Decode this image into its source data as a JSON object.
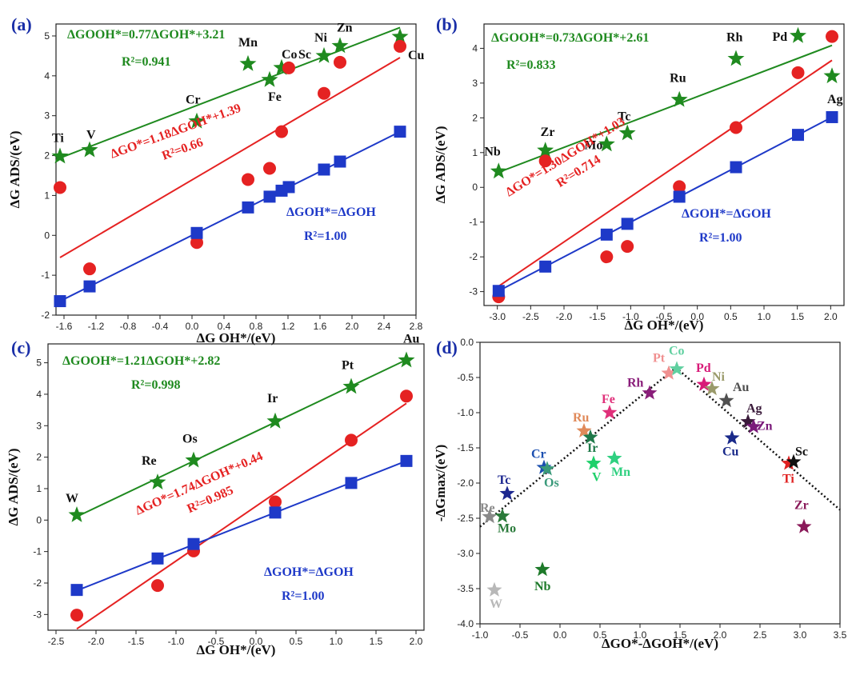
{
  "colors": {
    "ooh": "#1f8a1f",
    "o": "#e52222",
    "oh": "#1e39c8",
    "axis": "#222222",
    "panel_label": "#1a2fa8"
  },
  "chart_data": [
    {
      "type": "scatter",
      "panel": "(a)",
      "xlabel": "ΔG OH*/(eV)",
      "ylabel": "ΔG ADS/(eV)",
      "xlim": [
        -1.7,
        2.8
      ],
      "ylim": [
        -2.0,
        5.3
      ],
      "xticks": [
        "-1.6",
        "-1.2",
        "-0.8",
        "-0.4",
        "0.0",
        "0.4",
        "0.8",
        "1.2",
        "1.6",
        "2.0",
        "2.4",
        "2.8"
      ],
      "yticks": [
        "-2",
        "-1",
        "0",
        "1",
        "2",
        "3",
        "4",
        "5"
      ],
      "series": [
        {
          "name": "OOH*",
          "marker": "star",
          "color": "#1f8a1f",
          "x": [
            -1.65,
            -1.28,
            0.06,
            0.7,
            0.97,
            1.12,
            1.65,
            1.85,
            2.6
          ],
          "y": [
            1.98,
            2.14,
            2.86,
            4.3,
            3.9,
            4.2,
            4.5,
            4.75,
            4.98
          ],
          "fit": {
            "slope": 0.77,
            "intercept": 3.21
          },
          "equation": "ΔGOOH*=0.77ΔGOH*+3.21",
          "r2": "R²=0.941"
        },
        {
          "name": "O*",
          "marker": "circle",
          "color": "#e52222",
          "x": [
            -1.65,
            -1.28,
            0.06,
            0.7,
            0.97,
            1.12,
            1.21,
            1.65,
            1.85,
            2.6
          ],
          "y": [
            1.2,
            -0.84,
            -0.18,
            1.4,
            1.68,
            2.6,
            4.2,
            3.56,
            4.34,
            4.74
          ],
          "fit": {
            "slope": 1.18,
            "intercept": 1.39
          },
          "equation": "ΔGO*=1.18ΔGOH*+1.39",
          "r2": "R²=0.66"
        },
        {
          "name": "OH*",
          "marker": "square",
          "color": "#1e39c8",
          "x": [
            -1.65,
            -1.28,
            0.06,
            0.7,
            0.97,
            1.12,
            1.21,
            1.65,
            1.85,
            2.6
          ],
          "y": [
            -1.65,
            -1.28,
            0.06,
            0.7,
            0.97,
            1.12,
            1.21,
            1.65,
            1.85,
            2.6
          ],
          "fit": {
            "slope": 1.0,
            "intercept": 0.0
          },
          "equation": "ΔGOH*=ΔGOH",
          "r2": "R²=1.00"
        }
      ],
      "labels": [
        "Ti",
        "V",
        "Cr",
        "Mn",
        "Fe",
        "Co",
        "Sc",
        "Ni",
        "Zn",
        "Cu"
      ]
    },
    {
      "type": "scatter",
      "panel": "(b)",
      "xlabel": "ΔG OH*/(eV)",
      "ylabel": "ΔG ADS/(eV)",
      "xlim": [
        -3.2,
        2.2
      ],
      "ylim": [
        -3.4,
        4.7
      ],
      "xticks": [
        "-3.0",
        "-2.5",
        "-2.0",
        "-1.5",
        "-1.0",
        "-0.5",
        "0.0",
        "0.5",
        "1.0",
        "1.5",
        "2.0"
      ],
      "yticks": [
        "-3",
        "-2",
        "-1",
        "0",
        "1",
        "2",
        "3",
        "4"
      ],
      "series": [
        {
          "name": "OOH*",
          "marker": "star",
          "color": "#1f8a1f",
          "x": [
            -2.98,
            -2.28,
            -1.36,
            -1.05,
            -0.27,
            0.58,
            1.51,
            2.02
          ],
          "y": [
            0.46,
            1.06,
            1.24,
            1.56,
            2.52,
            3.7,
            4.36,
            3.2
          ],
          "fit": {
            "slope": 0.73,
            "intercept": 2.61
          },
          "equation": "ΔGOOH*=0.73ΔGOH*+2.61",
          "r2": "R²=0.833"
        },
        {
          "name": "O*",
          "marker": "circle",
          "color": "#e52222",
          "x": [
            -2.98,
            -2.28,
            -1.36,
            -1.05,
            -0.27,
            0.58,
            1.51,
            2.02
          ],
          "y": [
            -3.15,
            0.76,
            -2.0,
            -1.7,
            0.02,
            1.72,
            3.3,
            4.34
          ],
          "fit": {
            "slope": 1.3,
            "intercept": 1.03
          },
          "equation": "ΔGO*=1.30ΔGOH*+1.03",
          "r2": "R²=0.714"
        },
        {
          "name": "OH*",
          "marker": "square",
          "color": "#1e39c8",
          "x": [
            -2.98,
            -2.28,
            -1.36,
            -1.05,
            -0.27,
            0.58,
            1.51,
            2.02
          ],
          "y": [
            -2.98,
            -2.28,
            -1.36,
            -1.05,
            -0.27,
            0.58,
            1.51,
            2.02
          ],
          "fit": {
            "slope": 1.0,
            "intercept": 0.0
          },
          "equation": "ΔGOH*=ΔGOH",
          "r2": "R²=1.00"
        }
      ],
      "labels": [
        "Nb",
        "Zr",
        "Mo",
        "Tc",
        "Ru",
        "Rh",
        "Pd",
        "Ag"
      ]
    },
    {
      "type": "scatter",
      "panel": "(c)",
      "xlabel": "ΔG OH*/(eV)",
      "ylabel": "ΔG ADS/(eV)",
      "xlim": [
        -2.6,
        2.1
      ],
      "ylim": [
        -3.5,
        5.6
      ],
      "xticks": [
        "-2.5",
        "-2.0",
        "-1.5",
        "-1.0",
        "-0.5",
        "0.0",
        "0.5",
        "1.0",
        "1.5",
        "2.0"
      ],
      "yticks": [
        "-3",
        "-2",
        "-1",
        "0",
        "1",
        "2",
        "3",
        "4",
        "5"
      ],
      "series": [
        {
          "name": "OOH*",
          "marker": "star",
          "color": "#1f8a1f",
          "x": [
            -2.24,
            -1.23,
            -0.78,
            0.24,
            1.19,
            1.88
          ],
          "y": [
            0.16,
            1.2,
            1.9,
            3.14,
            4.24,
            5.08
          ],
          "fit": {
            "slope": 1.21,
            "intercept": 2.82
          },
          "equation": "ΔGOOH*=1.21ΔGOH*+2.82",
          "r2": "R²=0.998"
        },
        {
          "name": "O*",
          "marker": "circle",
          "color": "#e52222",
          "x": [
            -2.24,
            -1.23,
            -0.78,
            0.24,
            1.19,
            1.88
          ],
          "y": [
            -3.02,
            -2.08,
            -0.98,
            0.58,
            2.54,
            3.94
          ],
          "fit": {
            "slope": 1.74,
            "intercept": 0.44
          },
          "equation": "ΔGO*=1.74ΔGOH*+0.44",
          "r2": "R²=0.985"
        },
        {
          "name": "OH*",
          "marker": "square",
          "color": "#1e39c8",
          "x": [
            -2.24,
            -1.23,
            -0.78,
            0.24,
            1.19,
            1.88
          ],
          "y": [
            -2.22,
            -1.22,
            -0.76,
            0.24,
            1.18,
            1.88
          ],
          "fit": {
            "slope": 1.0,
            "intercept": 0.0
          },
          "equation": "ΔGOH*=ΔGOH",
          "r2": "R²=1.00"
        }
      ],
      "labels": [
        "W",
        "Re",
        "Os",
        "Ir",
        "Pt",
        "Au"
      ]
    },
    {
      "type": "scatter",
      "panel": "(d)",
      "xlabel": "ΔGO*-ΔGOH*/(eV)",
      "ylabel": "-ΔGmax/(eV)",
      "xlim": [
        -1.0,
        3.5
      ],
      "ylim": [
        -4.0,
        0.0
      ],
      "xticks": [
        "-1.0",
        "-0.5",
        "0.0",
        "0.5",
        "1.0",
        "1.5",
        "2.0",
        "2.5",
        "3.0",
        "3.5"
      ],
      "yticks": [
        "0.0",
        "-0.5",
        "-1.0",
        "-1.5",
        "-2.0",
        "-2.5",
        "-3.0",
        "-3.5",
        "-4.0"
      ],
      "volcano": {
        "left": [
          [
            -1.0,
            -2.62
          ],
          [
            1.45,
            -0.36
          ]
        ],
        "right": [
          [
            1.45,
            -0.36
          ],
          [
            3.5,
            -2.38
          ]
        ]
      },
      "points": [
        {
          "label": "Re",
          "x": -0.88,
          "y": -2.48,
          "color": "#8a8a8a"
        },
        {
          "label": "Mo",
          "x": -0.72,
          "y": -2.47,
          "color": "#2a7a3a"
        },
        {
          "label": "W",
          "x": -0.82,
          "y": -3.52,
          "color": "#b8b8b8"
        },
        {
          "label": "Tc",
          "x": -0.66,
          "y": -2.15,
          "color": "#1c2790"
        },
        {
          "label": "Nb",
          "x": -0.22,
          "y": -3.23,
          "color": "#1e7a2a"
        },
        {
          "label": "Cr",
          "x": -0.2,
          "y": -1.78,
          "color": "#1b4fb0"
        },
        {
          "label": "Os",
          "x": -0.16,
          "y": -1.8,
          "color": "#3a9a7a"
        },
        {
          "label": "Ru",
          "x": 0.3,
          "y": -1.26,
          "color": "#e08a5a"
        },
        {
          "label": "Ir",
          "x": 0.38,
          "y": -1.35,
          "color": "#1f7a4a"
        },
        {
          "label": "V",
          "x": 0.42,
          "y": -1.72,
          "color": "#1fd06a"
        },
        {
          "label": "Mn",
          "x": 0.68,
          "y": -1.65,
          "color": "#2fd080"
        },
        {
          "label": "Fe",
          "x": 0.62,
          "y": -1.0,
          "color": "#e0307a"
        },
        {
          "label": "Rh",
          "x": 1.12,
          "y": -0.72,
          "color": "#8a1e7a"
        },
        {
          "label": "Pt",
          "x": 1.36,
          "y": -0.44,
          "color": "#f09090"
        },
        {
          "label": "Co",
          "x": 1.46,
          "y": -0.38,
          "color": "#60d0a0"
        },
        {
          "label": "Pd",
          "x": 1.8,
          "y": -0.6,
          "color": "#d81a78"
        },
        {
          "label": "Ni",
          "x": 1.9,
          "y": -0.66,
          "color": "#9a9a6a"
        },
        {
          "label": "Au",
          "x": 2.08,
          "y": -0.83,
          "color": "#505050"
        },
        {
          "label": "Ag",
          "x": 2.35,
          "y": -1.13,
          "color": "#3a1a3a"
        },
        {
          "label": "Zn",
          "x": 2.42,
          "y": -1.2,
          "color": "#7a1a7a"
        },
        {
          "label": "Cu",
          "x": 2.15,
          "y": -1.36,
          "color": "#1a2a8a"
        },
        {
          "label": "Ti",
          "x": 2.86,
          "y": -1.72,
          "color": "#e02020"
        },
        {
          "label": "Sc",
          "x": 2.92,
          "y": -1.7,
          "color": "#111111"
        },
        {
          "label": "Zr",
          "x": 3.05,
          "y": -2.62,
          "color": "#8a1a5a"
        }
      ]
    }
  ]
}
